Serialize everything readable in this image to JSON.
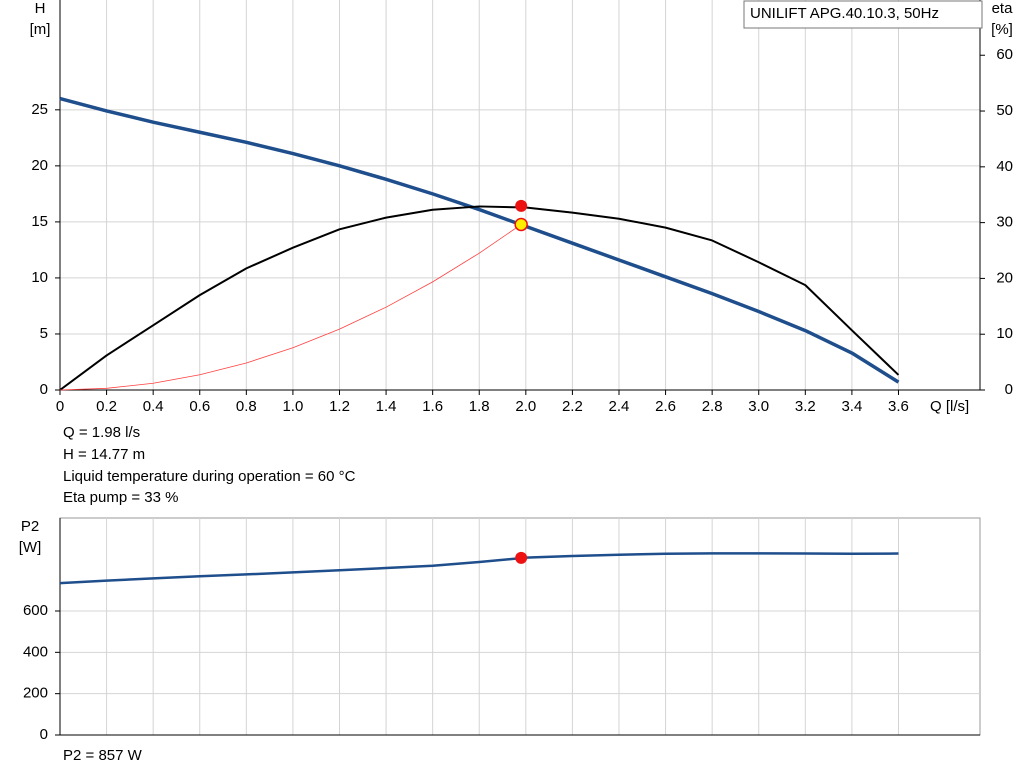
{
  "chart_data": [
    {
      "type": "line",
      "title": "UNILIFT APG.40.10.3, 50Hz",
      "y_label": [
        "H",
        "[m]"
      ],
      "y2_label": [
        "eta",
        "[%]"
      ],
      "x_label": "Q [l/s]",
      "x": [
        0,
        0.2,
        0.4,
        0.6,
        0.8,
        1.0,
        1.2,
        1.4,
        1.6,
        1.8,
        2.0,
        2.2,
        2.4,
        2.6,
        2.8,
        3.0,
        3.2,
        3.4,
        3.6
      ],
      "xlim": [
        0,
        3.95
      ],
      "xticks": [
        0,
        0.2,
        0.4,
        0.6,
        0.8,
        {
          "value": 1,
          "label": "1.0"
        },
        1.2,
        1.4,
        1.6,
        1.8,
        {
          "value": 2,
          "label": "2.0"
        },
        2.2,
        2.4,
        2.6,
        2.8,
        {
          "value": 3,
          "label": "3.0"
        },
        3.2,
        3.4,
        3.6
      ],
      "ylim": [
        0,
        34.8
      ],
      "yticks": [
        0,
        5,
        10,
        15,
        20,
        25
      ],
      "y2lim": [
        0,
        69.9
      ],
      "y2ticks": [
        0,
        10,
        20,
        30,
        40,
        50,
        60
      ],
      "grid": true,
      "series": [
        {
          "color": "#1f4e8c",
          "width": 3.5,
          "values": [
            26,
            24.9,
            23.9,
            23.0,
            22.1,
            21.1,
            20.0,
            18.8,
            17.5,
            16.1,
            14.6,
            13.1,
            11.6,
            10.1,
            8.6,
            7.0,
            5.3,
            3.3,
            0.7
          ]
        },
        {
          "color": "#000000",
          "width": 2,
          "axis": "y2",
          "values": [
            0,
            6.2,
            11.6,
            17,
            21.8,
            25.5,
            28.8,
            30.9,
            32.3,
            32.9,
            32.7,
            31.8,
            30.7,
            29.1,
            26.8,
            22.9,
            18.8,
            10.7,
            2.7
          ]
        },
        {
          "color": "#ff4040",
          "width": 0.8,
          "x": [
            0,
            0.2,
            0.4,
            0.6,
            0.8,
            1.0,
            1.2,
            1.4,
            1.6,
            1.8,
            1.98
          ],
          "values": [
            0,
            0.15,
            0.6,
            1.36,
            2.41,
            3.77,
            5.43,
            7.39,
            9.65,
            12.21,
            14.77
          ]
        }
      ],
      "points": [
        {
          "x": 1.98,
          "y": 33,
          "axis": "y2",
          "color": "#ee1111"
        },
        {
          "x": 1.98,
          "y": 14.77,
          "color": "#ffee00"
        }
      ],
      "annotations": [
        "Q = 1.98 l/s",
        "H = 14.77 m",
        "Liquid temperature during operation = 60 °C",
        "Eta pump = 33 %"
      ]
    },
    {
      "type": "line",
      "y_label": [
        "P2",
        "[W]"
      ],
      "x": [
        0,
        0.2,
        0.4,
        0.6,
        0.8,
        1.0,
        1.2,
        1.4,
        1.6,
        1.8,
        2.0,
        2.2,
        2.4,
        2.6,
        2.8,
        3.0,
        3.2,
        3.4,
        3.6
      ],
      "xlim": [
        0,
        3.95
      ],
      "ylim": [
        0,
        1050
      ],
      "yticks": [
        0,
        200,
        400,
        600
      ],
      "grid": true,
      "series": [
        {
          "color": "#1f4e8c",
          "width": 2.5,
          "values": [
            735,
            747,
            758,
            768,
            777,
            787,
            797,
            808,
            819,
            837,
            858,
            866,
            872,
            877,
            879,
            879,
            878,
            877,
            878
          ]
        }
      ],
      "points": [
        {
          "x": 1.98,
          "y": 857,
          "color": "#ee1111"
        }
      ],
      "annotations": [
        "P2 = 857 W"
      ]
    }
  ]
}
